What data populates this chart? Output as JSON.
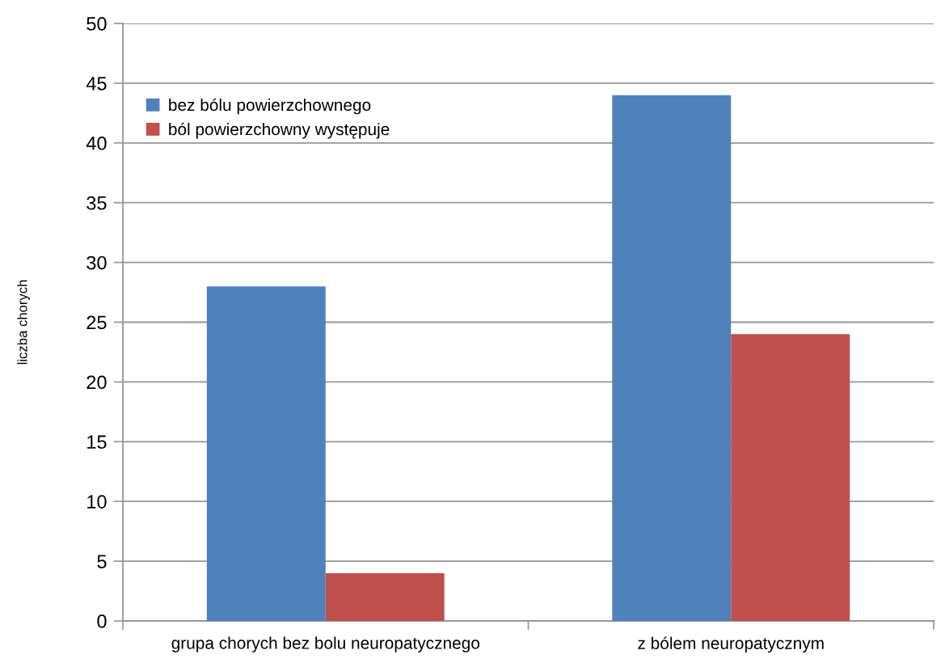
{
  "chart_data": {
    "type": "bar",
    "ylabel": "liczba chorych",
    "categories": [
      "grupa chorych bez bolu neuropatycznego",
      "z bólem neuropatycznym"
    ],
    "series": [
      {
        "name": "bez bólu powierzchownego",
        "color": "#4f81bd",
        "values": [
          28,
          44
        ]
      },
      {
        "name": "ból powierzchowny występuje",
        "color": "#c0504d",
        "values": [
          4,
          24
        ]
      }
    ],
    "ylim": [
      0,
      50
    ],
    "yticks": [
      0,
      5,
      10,
      15,
      20,
      25,
      30,
      35,
      40,
      45,
      50
    ],
    "grid": "y",
    "legend": "top left"
  }
}
